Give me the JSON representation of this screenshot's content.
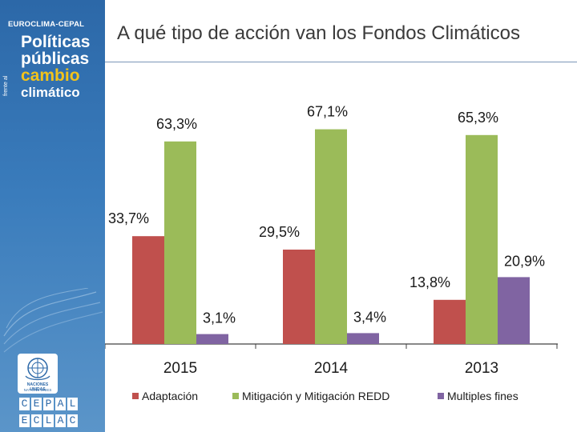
{
  "branding": {
    "top": "EUROCLIMA-CEPAL",
    "line1": "Políticas",
    "line2": "públicas",
    "frente": "frente al",
    "line3": "cambio",
    "line4": "climático",
    "un_line1": "NACIONES UNIDAS",
    "un_line2": "NATIONS UNIES",
    "cepal_letters": [
      "C",
      "E",
      "P",
      "A",
      "L"
    ],
    "eclac_letters": [
      "E",
      "C",
      "L",
      "A",
      "C"
    ],
    "accent": "#f2c31b"
  },
  "chart_data": {
    "type": "bar",
    "title": "A qué tipo de acción van los Fondos Climáticos",
    "categories": [
      "2015",
      "2014",
      "2013"
    ],
    "series": [
      {
        "name": "Adaptación",
        "color": "#c0504d",
        "values": [
          33.7,
          29.5,
          13.8
        ],
        "labels": [
          "33,7%",
          "29,5%",
          "13,8%"
        ]
      },
      {
        "name": "Mitigación y Mitigación REDD",
        "color": "#9bbb59",
        "values": [
          63.3,
          67.1,
          65.3
        ],
        "labels": [
          "63,3%",
          "67,1%",
          "65,3%"
        ]
      },
      {
        "name": "Multiples fines",
        "color": "#8064a2",
        "values": [
          3.1,
          3.4,
          20.9
        ],
        "labels": [
          "3,1%",
          "3,4%",
          "20,9%"
        ]
      }
    ],
    "ylim": [
      0,
      75
    ],
    "grid": false,
    "legend": "bottom",
    "xlabel": "",
    "ylabel": ""
  }
}
